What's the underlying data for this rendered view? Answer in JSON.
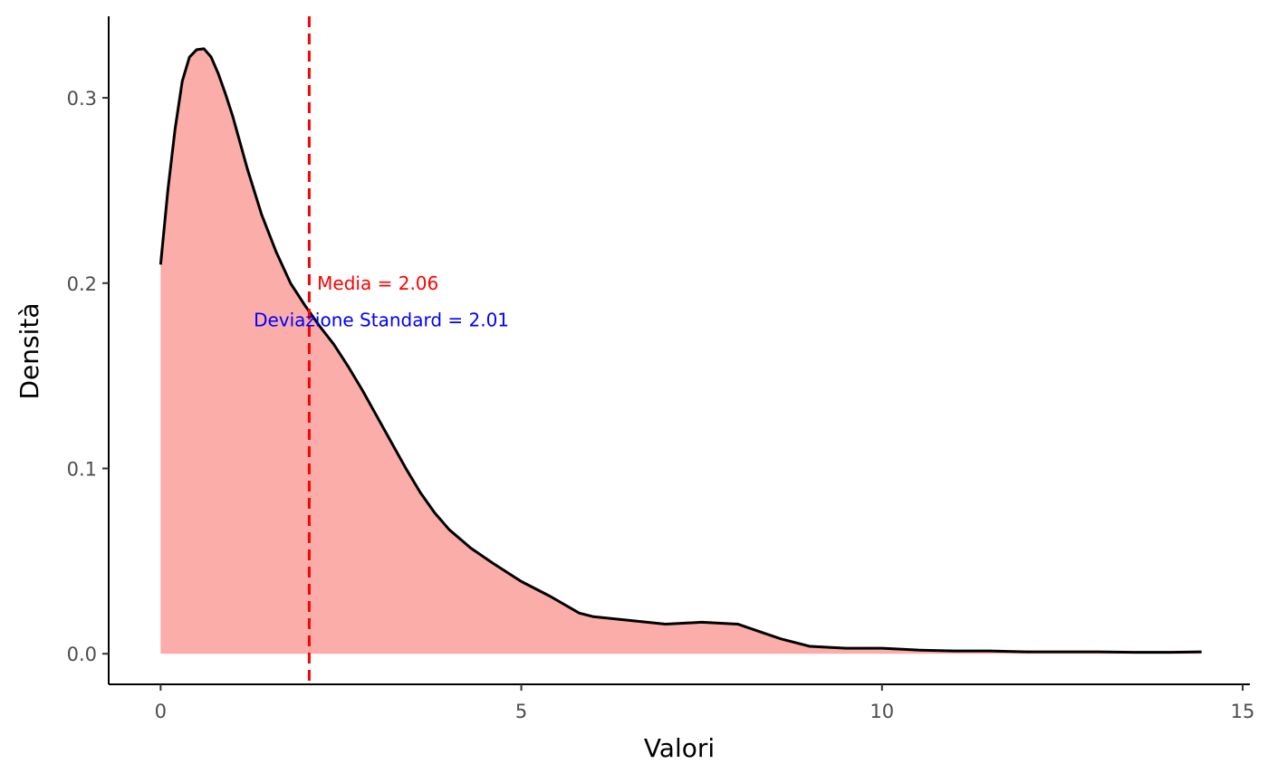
{
  "chart_data": {
    "type": "area",
    "title": "",
    "xlabel": "Valori",
    "ylabel": "Densità",
    "xlim": [
      -0.72,
      15.1
    ],
    "ylim": [
      -0.0165,
      0.344
    ],
    "grid": false,
    "legend": "none",
    "x_ticks": [
      0,
      5,
      10,
      15
    ],
    "x_tick_labels": [
      "0",
      "5",
      "10",
      "15"
    ],
    "y_ticks": [
      0.0,
      0.1,
      0.2,
      0.3
    ],
    "y_tick_labels": [
      "0.0",
      "0.1",
      "0.2",
      "0.3"
    ],
    "series": [
      {
        "x": [
          0,
          0.1,
          0.2,
          0.3,
          0.4,
          0.5,
          0.6,
          0.7,
          0.8,
          0.9,
          1.0,
          1.2,
          1.4,
          1.6,
          1.8,
          2.0,
          2.2,
          2.4,
          2.6,
          2.8,
          3.0,
          3.2,
          3.4,
          3.6,
          3.8,
          4.0,
          4.3,
          4.6,
          5.0,
          5.4,
          5.8,
          6.0,
          6.5,
          7.0,
          7.5,
          8.0,
          8.3,
          8.6,
          9.0,
          9.5,
          10.0,
          10.5,
          11.0,
          11.5,
          12.0,
          12.5,
          13.0,
          13.5,
          14.0,
          14.43
        ],
        "y": [
          0.21,
          0.25,
          0.283,
          0.309,
          0.322,
          0.326,
          0.3265,
          0.322,
          0.313,
          0.302,
          0.29,
          0.262,
          0.237,
          0.217,
          0.2,
          0.188,
          0.177,
          0.167,
          0.155,
          0.142,
          0.128,
          0.114,
          0.1,
          0.087,
          0.076,
          0.067,
          0.057,
          0.049,
          0.039,
          0.031,
          0.022,
          0.02,
          0.018,
          0.016,
          0.017,
          0.016,
          0.012,
          0.008,
          0.004,
          0.003,
          0.003,
          0.002,
          0.0015,
          0.0015,
          0.001,
          0.001,
          0.001,
          0.0008,
          0.0008,
          0.001
        ],
        "fill": "#fbaea9",
        "line": "#000000"
      }
    ],
    "vlines": [
      {
        "x": 2.06,
        "color": "#ff0000",
        "style": "dashed"
      }
    ],
    "annotations": [
      {
        "text": "Media = 2.06",
        "x": 2.17,
        "y": 0.2,
        "color": "#ff0000",
        "anchor": "start"
      },
      {
        "text": "Deviazione Standard = 2.01",
        "x": 3.06,
        "y": 0.18,
        "color": "#0000ff",
        "anchor": "middle"
      }
    ]
  }
}
